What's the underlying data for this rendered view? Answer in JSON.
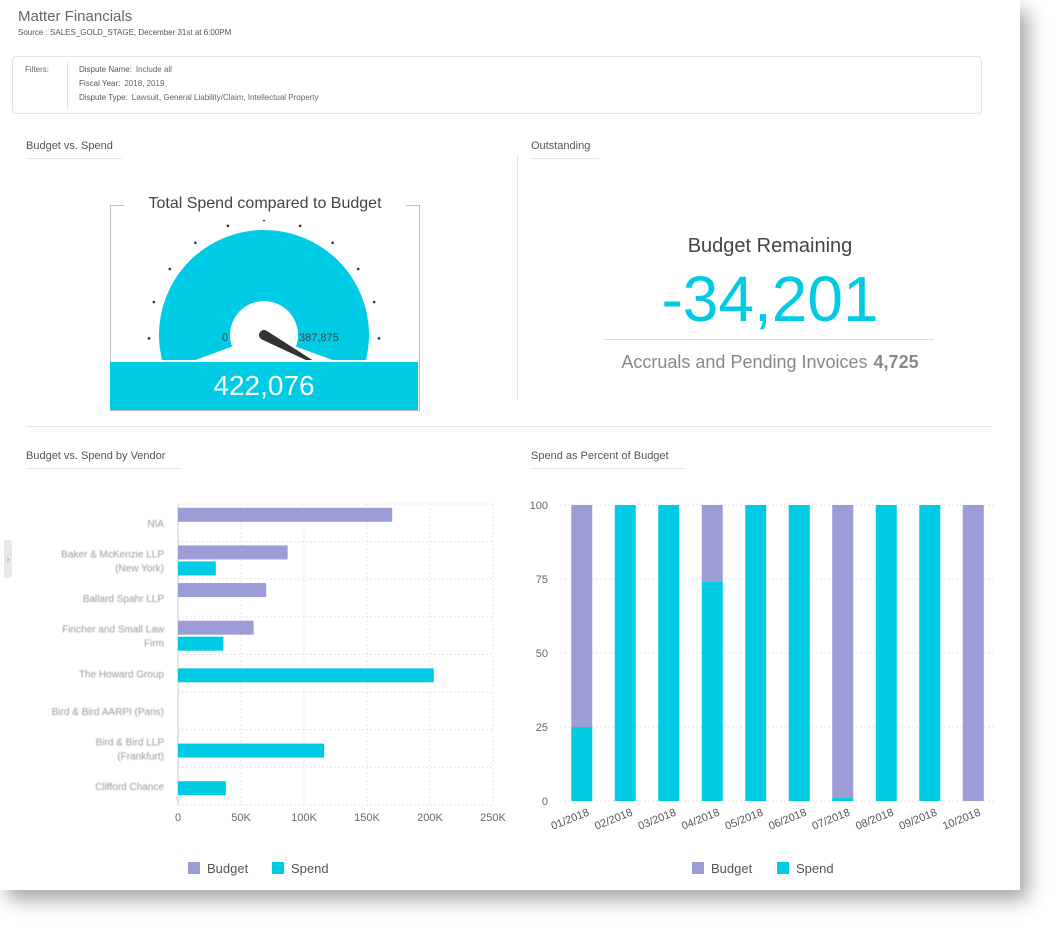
{
  "header": {
    "title": "Matter Financials",
    "source": "Source : SALES_GOLD_STAGE, December 31st at 6:00PM"
  },
  "filters": {
    "label": "Filters:",
    "items": [
      {
        "key": "Dispute Name:",
        "value": "Include all"
      },
      {
        "key": "Fiscal Year:",
        "value": "2018, 2019"
      },
      {
        "key": "Dispute Type:",
        "value": "Lawsuit, General Liability/Claim, Intellectual Property"
      }
    ]
  },
  "sections": {
    "budget_vs_spend": "Budget vs. Spend",
    "outstanding": "Outstanding",
    "by_vendor": "Budget vs. Spend by Vendor",
    "percent": "Spend as Percent of Budget"
  },
  "gauge": {
    "title": "Total Spend compared to Budget",
    "min_label": "0",
    "max_label": "387,875",
    "value_label": "422,076",
    "min": 0,
    "max": 387875,
    "value": 422076
  },
  "outstanding": {
    "label": "Budget Remaining",
    "value": "-34,201",
    "accruals_label": "Accruals and Pending Invoices",
    "accruals_value": "4,725"
  },
  "colors": {
    "budget": "#9C9CD6",
    "spend": "#00CBE5"
  },
  "chart_data": [
    {
      "type": "bar",
      "orientation": "horizontal",
      "categories": [
        [
          "N\\A"
        ],
        [
          "Baker & McKenzie LLP",
          "(New York)"
        ],
        [
          "Ballard Spahr LLP"
        ],
        [
          "Fincher and Small Law",
          "Firm"
        ],
        [
          "The Howard Group"
        ],
        [
          "Bird & Bird AARPI (Paris)"
        ],
        [
          "Bird & Bird LLP",
          "(Frankfurt)"
        ],
        [
          "Clifford Chance"
        ]
      ],
      "series": [
        {
          "name": "Budget",
          "values": [
            170000,
            87000,
            70000,
            60000,
            null,
            null,
            null,
            null
          ]
        },
        {
          "name": "Spend",
          "values": [
            null,
            30000,
            null,
            36000,
            203000,
            null,
            116000,
            38000
          ]
        }
      ],
      "xlim": [
        0,
        250000
      ],
      "xticks": [
        "0",
        "50K",
        "100K",
        "150K",
        "200K",
        "250K"
      ],
      "legend": [
        "Budget",
        "Spend"
      ],
      "legend_position": "bottom"
    },
    {
      "type": "bar",
      "stacked": true,
      "categories": [
        "01/2018",
        "02/2018",
        "03/2018",
        "04/2018",
        "05/2018",
        "06/2018",
        "07/2018",
        "08/2018",
        "09/2018",
        "10/2018"
      ],
      "series": [
        {
          "name": "Spend",
          "values": [
            25,
            100,
            100,
            74,
            100,
            100,
            1,
            100,
            100,
            0
          ]
        },
        {
          "name": "Budget",
          "values": [
            75,
            0,
            0,
            26,
            0,
            0,
            99,
            0,
            0,
            100
          ]
        }
      ],
      "ylim": [
        0,
        100
      ],
      "yticks": [
        "0",
        "25",
        "50",
        "75",
        "100"
      ],
      "legend": [
        "Budget",
        "Spend"
      ],
      "legend_position": "bottom"
    }
  ]
}
